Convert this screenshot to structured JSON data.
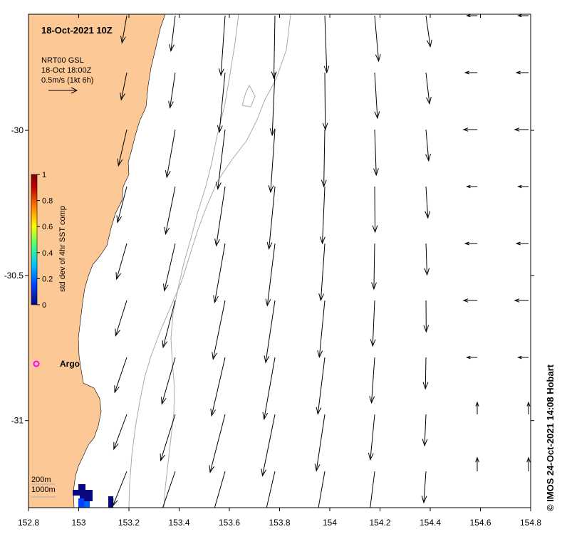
{
  "map": {
    "title": "18-Oct-2021 10Z",
    "legend": {
      "product": "NRT00 GSL",
      "time": "18-Oct 18:00Z",
      "scale": "0.5m/s (1kt 6h)"
    },
    "colorbar": {
      "label": "std dev of 4hr SST comp",
      "ticks": [
        "0",
        "0.2",
        "0.4",
        "0.6",
        "0.8",
        "1"
      ],
      "colors": [
        "#0a0a80",
        "#0040ff",
        "#00c0ff",
        "#40ff80",
        "#ffff00",
        "#ff8000",
        "#c00000",
        "#800000"
      ]
    },
    "argo_label": "Argo",
    "depth_labels": [
      "200m",
      "1000m"
    ],
    "credit": "© IMOS 24-Oct-2021 14:08 Hobart",
    "x_axis": {
      "ticks": [
        "152.8",
        "153",
        "153.2",
        "153.4",
        "153.6",
        "153.8",
        "154",
        "154.2",
        "154.4",
        "154.6",
        "154.8"
      ],
      "range": [
        152.8,
        154.8
      ]
    },
    "y_axis": {
      "ticks": [
        "-30",
        "-30.5",
        "-31"
      ],
      "range": [
        -31.3,
        -29.6
      ]
    },
    "colors": {
      "land": "#fcc996",
      "isobath": "#aaaaaa",
      "arrow": "#000000",
      "argo": "#ff00ff"
    }
  }
}
